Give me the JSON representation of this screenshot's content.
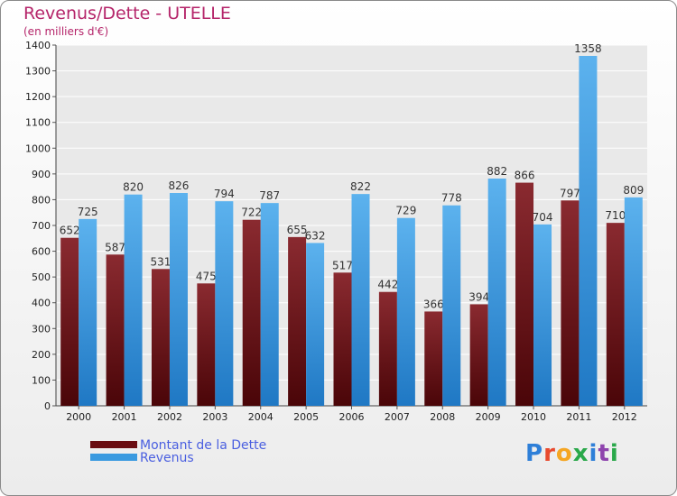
{
  "header": {
    "title": "Revenus/Dette - UTELLE",
    "subtitle": "(en milliers d'€)"
  },
  "legend": {
    "debt_label": "Montant de la Dette",
    "revenue_label": "Revenus"
  },
  "logo": {
    "letters": [
      "P",
      "r",
      "o",
      "x",
      "i",
      "t",
      "i"
    ],
    "colors": [
      "#2e7fd8",
      "#e84a2e",
      "#f5a623",
      "#2aa84a",
      "#2e7fd8",
      "#8e44ad",
      "#2aa84a"
    ]
  },
  "colors": {
    "debt": "#7a1a22",
    "revenue": "#4aa3e6"
  },
  "chart_data": {
    "type": "bar",
    "title": "Revenus/Dette - UTELLE",
    "ylabel": "(en milliers d'€)",
    "xlabel": "",
    "categories": [
      "2000",
      "2001",
      "2002",
      "2003",
      "2004",
      "2005",
      "2006",
      "2007",
      "2008",
      "2009",
      "2010",
      "2011",
      "2012"
    ],
    "series": [
      {
        "name": "Montant de la Dette",
        "values": [
          652,
          587,
          531,
          475,
          722,
          655,
          517,
          442,
          366,
          394,
          866,
          797,
          710
        ]
      },
      {
        "name": "Revenus",
        "values": [
          725,
          820,
          826,
          794,
          787,
          632,
          822,
          729,
          778,
          882,
          704,
          1358,
          809
        ]
      }
    ],
    "ylim": [
      0,
      1400
    ],
    "yticks": [
      0,
      100,
      200,
      300,
      400,
      500,
      600,
      700,
      800,
      900,
      1000,
      1100,
      1200,
      1300,
      1400
    ],
    "grid": true,
    "legend_position": "bottom-left"
  }
}
